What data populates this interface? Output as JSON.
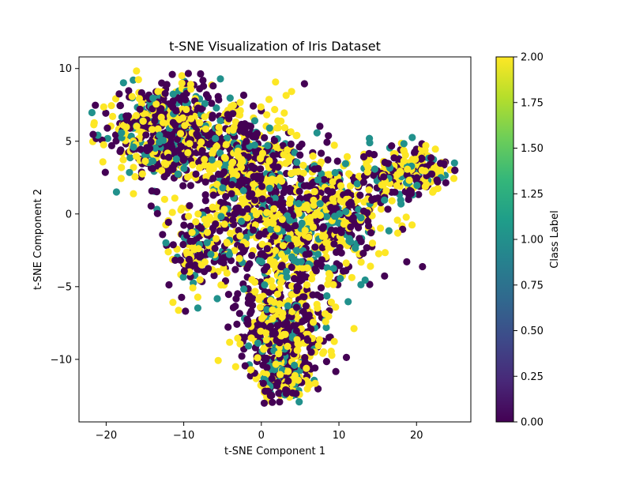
{
  "chart_data": {
    "type": "scatter",
    "title": "t-SNE Visualization of Iris Dataset",
    "xlabel": "t-SNE Component 1",
    "ylabel": "t-SNE Component 2",
    "xlim": [
      -23.5,
      27.0
    ],
    "ylim": [
      -14.3,
      10.8
    ],
    "xticks": [
      -20,
      -10,
      0,
      10,
      20
    ],
    "yticks": [
      -10,
      -5,
      0,
      5,
      10
    ],
    "grid": false,
    "colorbar": {
      "label": "Class Label",
      "range": [
        0.0,
        2.0
      ],
      "ticks": [
        "0.00",
        "0.25",
        "0.50",
        "0.75",
        "1.00",
        "1.25",
        "1.50",
        "1.75",
        "2.00"
      ],
      "colormap": "viridis",
      "color_stops": [
        "#440154",
        "#482878",
        "#3e4989",
        "#31688e",
        "#26828e",
        "#1f9e89",
        "#35b779",
        "#6ece58",
        "#b5de2b",
        "#fde725"
      ]
    },
    "class_colors": {
      "0": "#440154",
      "1": "#21918c",
      "2": "#fde725"
    },
    "point_regions": [
      {
        "label": "upper-left band",
        "cx": -12,
        "cy": 5.5,
        "sx": 5.5,
        "sy": 2.2,
        "share": 0.22
      },
      {
        "label": "upper middle",
        "cx": -2,
        "cy": 3.5,
        "sx": 5.0,
        "sy": 2.5,
        "share": 0.14
      },
      {
        "label": "center",
        "cx": 2,
        "cy": -1,
        "sx": 6.0,
        "sy": 3.0,
        "share": 0.18
      },
      {
        "label": "right ridge",
        "cx": 10,
        "cy": 0,
        "sx": 4.5,
        "sy": 2.8,
        "share": 0.12
      },
      {
        "label": "right wing",
        "cx": 19,
        "cy": 3,
        "sx": 3.2,
        "sy": 1.1,
        "share": 0.08
      },
      {
        "label": "lower lobe",
        "cx": 3,
        "cy": -8,
        "sx": 3.8,
        "sy": 2.4,
        "share": 0.16
      },
      {
        "label": "bottom tip",
        "cx": 3,
        "cy": -11.5,
        "sx": 2.2,
        "sy": 1.0,
        "share": 0.05
      },
      {
        "label": "left lower",
        "cx": -8,
        "cy": -2.5,
        "sx": 3.0,
        "sy": 2.0,
        "share": 0.05
      }
    ],
    "class_mix": [
      0.45,
      0.15,
      0.4
    ],
    "approx_point_count": 3000
  }
}
